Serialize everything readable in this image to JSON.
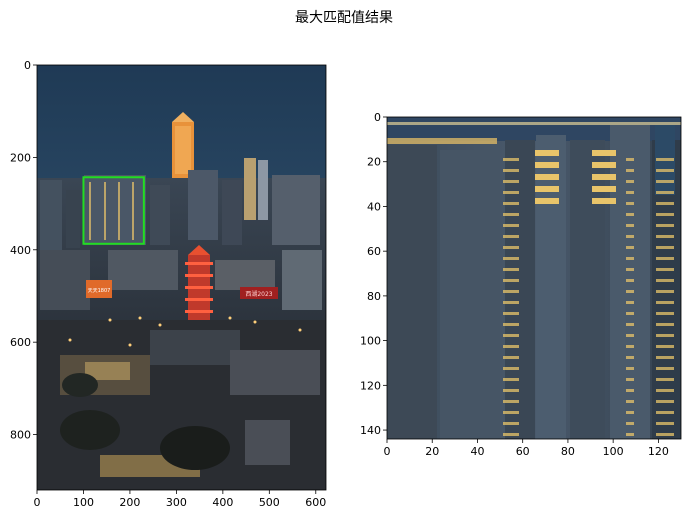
{
  "figure": {
    "suptitle": "最大匹配值结果"
  },
  "left_panel": {
    "x_ticks": [
      "0",
      "100",
      "200",
      "300",
      "400",
      "500",
      "600"
    ],
    "y_ticks": [
      "0",
      "200",
      "400",
      "600",
      "800"
    ],
    "xlim": [
      0,
      622
    ],
    "ylim": [
      920,
      0
    ],
    "image": {
      "subject": "night city skyline photo",
      "sky_color": "#2c4a66",
      "tower_color": "#f0a040"
    },
    "match_box": {
      "x": [
        100,
        230
      ],
      "y": [
        243,
        387
      ],
      "color": "#22dd22"
    },
    "signs": [
      {
        "text": "天天1807"
      },
      {
        "text": "西湖2023"
      }
    ]
  },
  "right_panel": {
    "x_ticks": [
      "0",
      "20",
      "40",
      "60",
      "80",
      "100",
      "120"
    ],
    "y_ticks": [
      "0",
      "20",
      "40",
      "60",
      "80",
      "100",
      "120",
      "140"
    ],
    "xlim": [
      0,
      130
    ],
    "ylim": [
      144,
      0
    ],
    "image": {
      "subject": "enlarged crop of matched buildings",
      "window_light_color": "#e8c46a"
    }
  }
}
